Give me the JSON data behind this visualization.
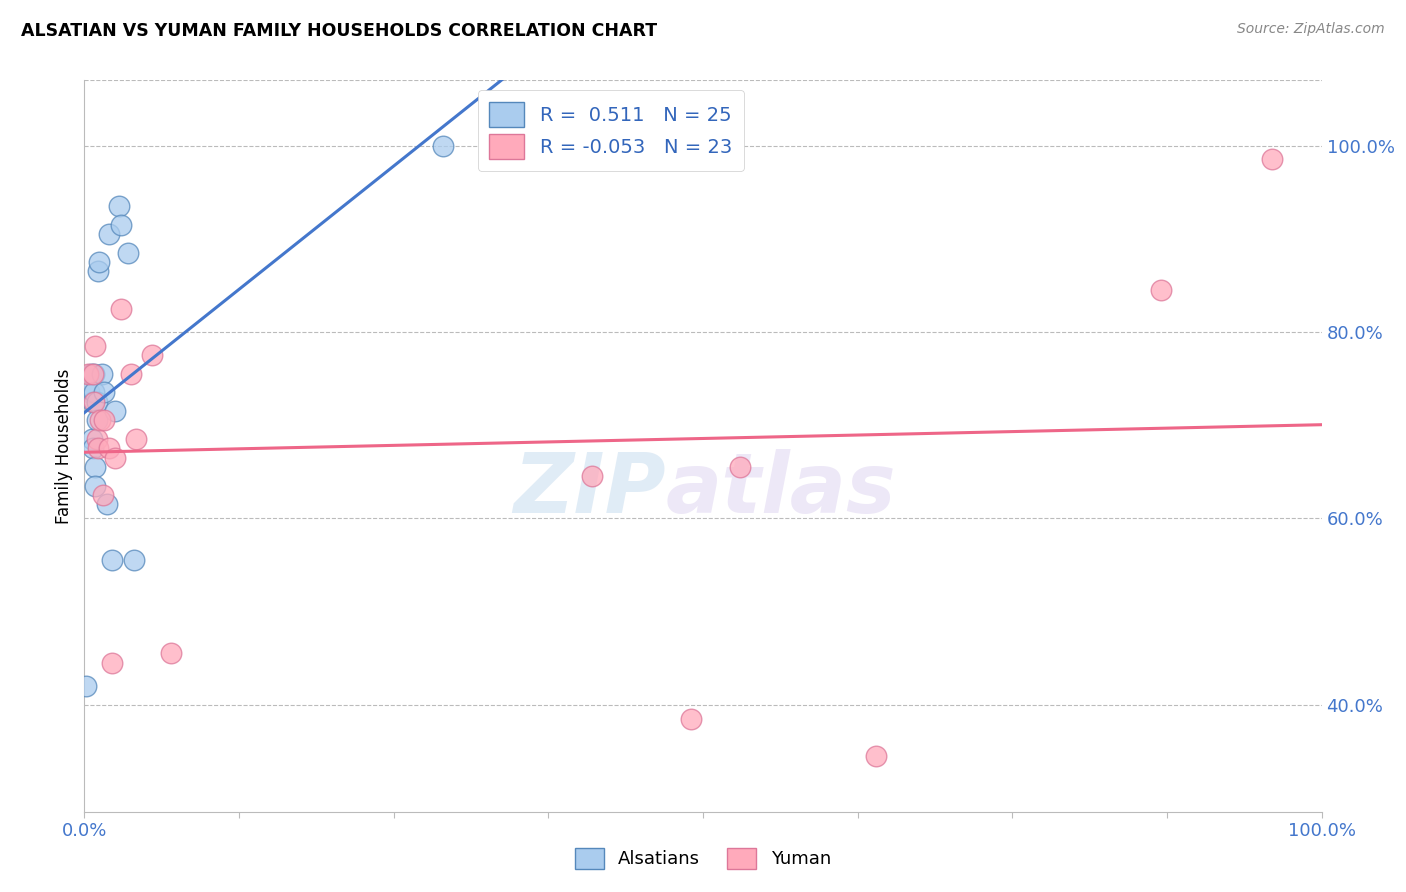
{
  "title": "ALSATIAN VS YUMAN FAMILY HOUSEHOLDS CORRELATION CHART",
  "source": "Source: ZipAtlas.com",
  "ylabel": "Family Households",
  "ytick_labels": [
    "40.0%",
    "60.0%",
    "80.0%",
    "100.0%"
  ],
  "ytick_values": [
    0.4,
    0.6,
    0.8,
    1.0
  ],
  "legend_labels": [
    "Alsatians",
    "Yuman"
  ],
  "legend_r_blue": "R =  0.511",
  "legend_n_blue": "N = 25",
  "legend_r_pink": "R = -0.053",
  "legend_n_pink": "N = 23",
  "blue_fill": "#AACCEE",
  "blue_edge": "#5588BB",
  "pink_fill": "#FFAABB",
  "pink_edge": "#DD7799",
  "trend_blue": "#4477CC",
  "trend_pink": "#EE6688",
  "alsatian_x": [
    0.001,
    0.004,
    0.005,
    0.006,
    0.007,
    0.007,
    0.008,
    0.008,
    0.009,
    0.009,
    0.01,
    0.01,
    0.011,
    0.012,
    0.014,
    0.016,
    0.018,
    0.02,
    0.022,
    0.025,
    0.028,
    0.03,
    0.035,
    0.04,
    0.29
  ],
  "alsatian_y": [
    0.42,
    0.735,
    0.755,
    0.685,
    0.725,
    0.675,
    0.755,
    0.735,
    0.655,
    0.635,
    0.725,
    0.705,
    0.865,
    0.875,
    0.755,
    0.735,
    0.615,
    0.905,
    0.555,
    0.715,
    0.935,
    0.915,
    0.885,
    0.555,
    1.0
  ],
  "yuman_x": [
    0.003,
    0.007,
    0.008,
    0.009,
    0.01,
    0.011,
    0.013,
    0.015,
    0.016,
    0.02,
    0.022,
    0.025,
    0.03,
    0.038,
    0.042,
    0.055,
    0.07,
    0.41,
    0.49,
    0.53,
    0.64,
    0.87,
    0.96
  ],
  "yuman_y": [
    0.755,
    0.755,
    0.725,
    0.785,
    0.685,
    0.675,
    0.705,
    0.625,
    0.705,
    0.675,
    0.445,
    0.665,
    0.825,
    0.755,
    0.685,
    0.775,
    0.455,
    0.645,
    0.385,
    0.655,
    0.345,
    0.845,
    0.985
  ],
  "watermark_zip": "ZIP",
  "watermark_atlas": "atlas",
  "background_color": "#FFFFFF",
  "grid_color": "#BBBBBB",
  "xlim": [
    0.0,
    1.0
  ],
  "ylim": [
    0.285,
    1.07
  ]
}
